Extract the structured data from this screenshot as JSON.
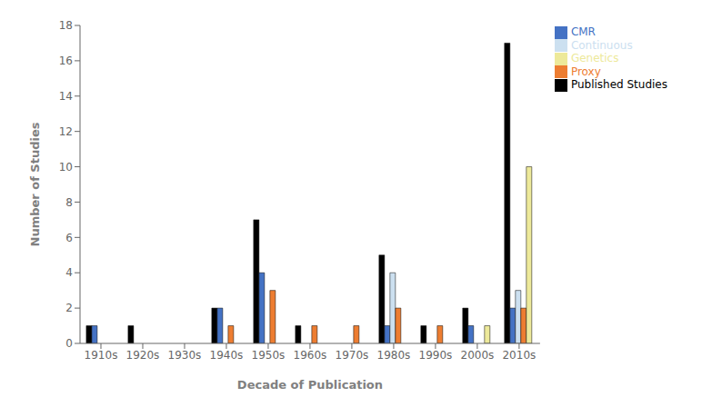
{
  "chart_data": {
    "type": "bar",
    "categories": [
      "1910s",
      "1920s",
      "1930s",
      "1940s",
      "1950s",
      "1960s",
      "1970s",
      "1980s",
      "1990s",
      "2000s",
      "2010s"
    ],
    "series": [
      {
        "name": "Published Studies",
        "color": "#000000",
        "values": [
          1,
          1,
          0,
          2,
          7,
          1,
          0,
          5,
          1,
          2,
          17
        ]
      },
      {
        "name": "CMR",
        "color": "#4472c4",
        "values": [
          1,
          0,
          0,
          2,
          4,
          0,
          0,
          1,
          0,
          1,
          2
        ]
      },
      {
        "name": "Continuous",
        "color": "#cce0f0",
        "values": [
          0,
          0,
          0,
          0,
          0,
          0,
          0,
          4,
          0,
          0,
          3
        ]
      },
      {
        "name": "Proxy",
        "color": "#ed7d31",
        "values": [
          0,
          0,
          0,
          1,
          3,
          1,
          1,
          2,
          1,
          0,
          2
        ]
      },
      {
        "name": "Genetics",
        "color": "#ede99a",
        "values": [
          0,
          0,
          0,
          0,
          0,
          0,
          0,
          0,
          0,
          1,
          10
        ]
      }
    ],
    "xlabel": "Decade of Publication",
    "ylabel": "Number of Studies",
    "ylim": [
      0,
      18
    ],
    "yticks": [
      0,
      2,
      4,
      6,
      8,
      10,
      12,
      14,
      16,
      18
    ],
    "grid": false,
    "legend": "upper right"
  }
}
